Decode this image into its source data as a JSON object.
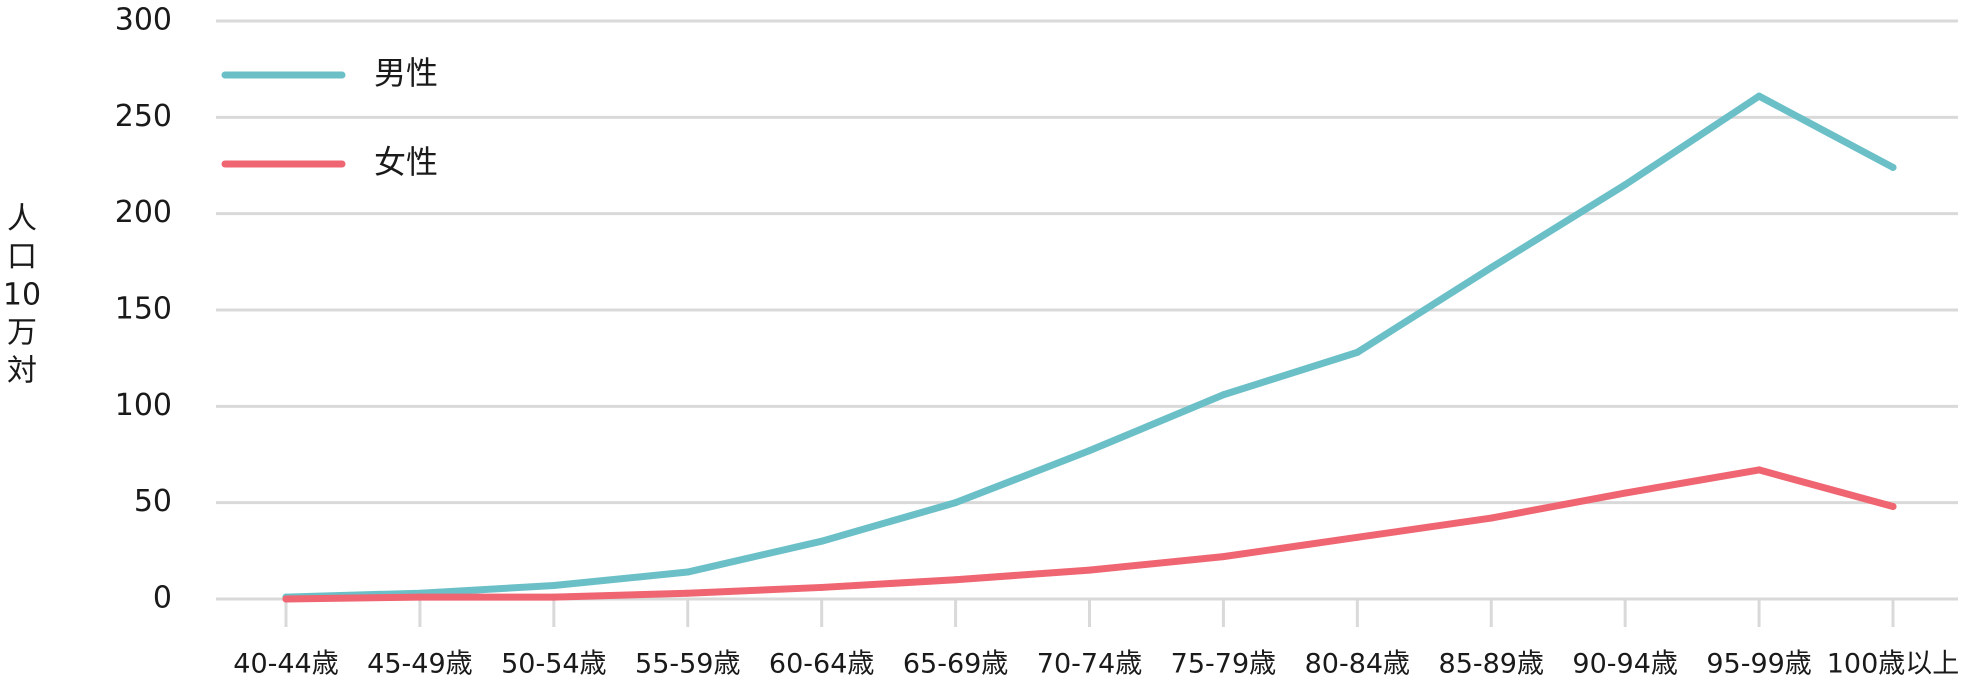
{
  "chart_data": {
    "type": "line",
    "title": "",
    "xlabel": "",
    "ylabel": "人口10万対",
    "ylabel_chars": [
      "人",
      "口",
      "10",
      "万",
      "対"
    ],
    "ylim": [
      0,
      300
    ],
    "yticks": [
      0,
      50,
      100,
      150,
      200,
      250,
      300
    ],
    "grid": true,
    "legend_position": "top-left",
    "categories": [
      "40-44歳",
      "45-49歳",
      "50-54歳",
      "55-59歳",
      "60-64歳",
      "65-69歳",
      "70-74歳",
      "75-79歳",
      "80-84歳",
      "85-89歳",
      "90-94歳",
      "95-99歳",
      "100歳以上"
    ],
    "series": [
      {
        "name": "男性",
        "color": "#6bc0c8",
        "values": [
          1,
          3,
          7,
          14,
          30,
          50,
          77,
          106,
          128,
          172,
          215,
          261,
          224
        ]
      },
      {
        "name": "女性",
        "color": "#ef6571",
        "values": [
          0,
          1,
          1,
          3,
          6,
          10,
          15,
          22,
          32,
          42,
          55,
          67,
          48
        ]
      }
    ]
  }
}
